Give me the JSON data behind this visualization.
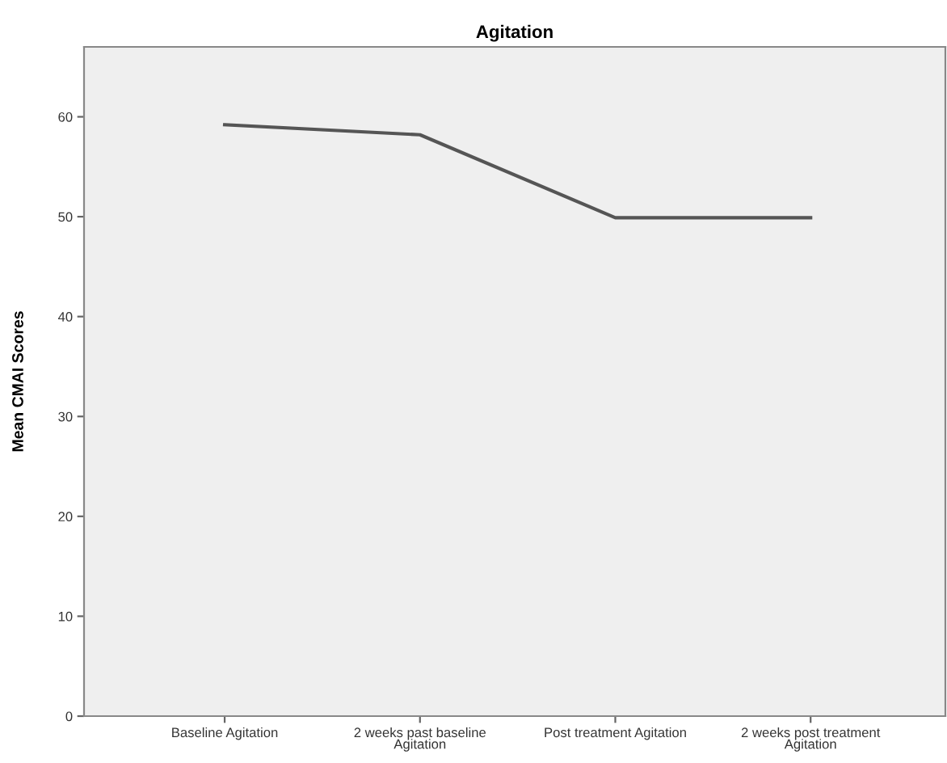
{
  "chart_data": {
    "type": "line",
    "title": "Agitation",
    "ylabel": "Mean CMAI Scores",
    "categories": [
      "Baseline Agitation",
      "2 weeks past baseline\nAgitation",
      "Post treatment Agitation",
      "2 weeks post treatment\nAgitation"
    ],
    "values": [
      59.2,
      58.2,
      49.9,
      49.9
    ],
    "color": "#555555",
    "ylim": [
      0,
      67
    ],
    "yticks": [
      0,
      10,
      20,
      30,
      40,
      50,
      60
    ],
    "grid": false,
    "marker": "none",
    "line_style": "solid"
  }
}
